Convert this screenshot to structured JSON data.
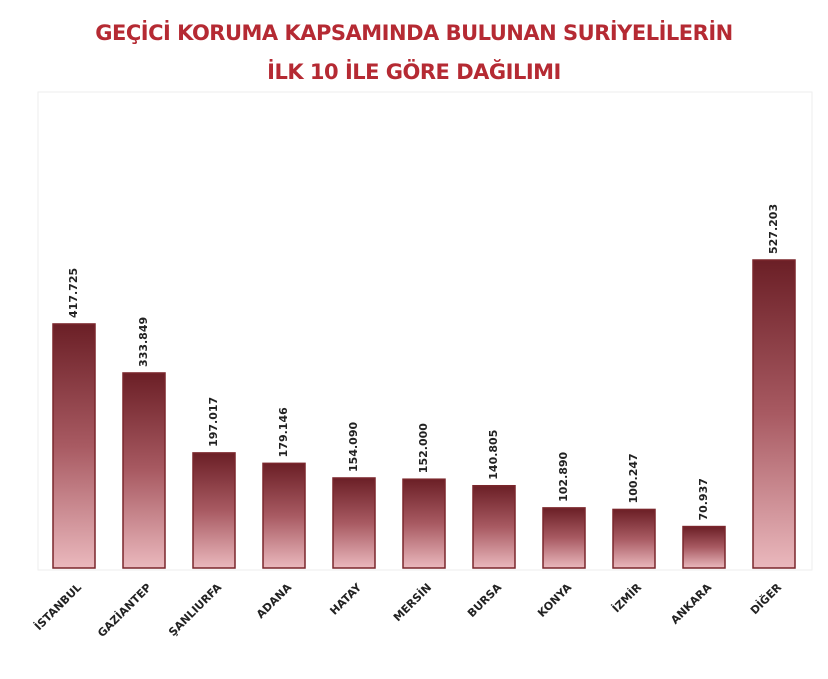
{
  "chart_data": {
    "type": "bar",
    "title": [
      "GEÇİCİ KORUMA KAPSAMINDA BULUNAN SURİYELİLERİN",
      "İLK 10 İLE GÖRE DAĞILIMI"
    ],
    "categories": [
      "İSTANBUL",
      "GAZİANTEP",
      "ŞANLIURFA",
      "ADANA",
      "HATAY",
      "MERSİN",
      "BURSA",
      "KONYA",
      "İZMİR",
      "ANKARA",
      "DİĞER"
    ],
    "values": [
      417725,
      333849,
      197017,
      179146,
      154090,
      152000,
      140805,
      102890,
      100247,
      70937,
      527203
    ],
    "value_labels": [
      "417.725",
      "333.849",
      "197.017",
      "179.146",
      "154.090",
      "152.000",
      "140.805",
      "102.890",
      "100.247",
      "70.937",
      "527.203"
    ],
    "color": "#7a262c"
  }
}
